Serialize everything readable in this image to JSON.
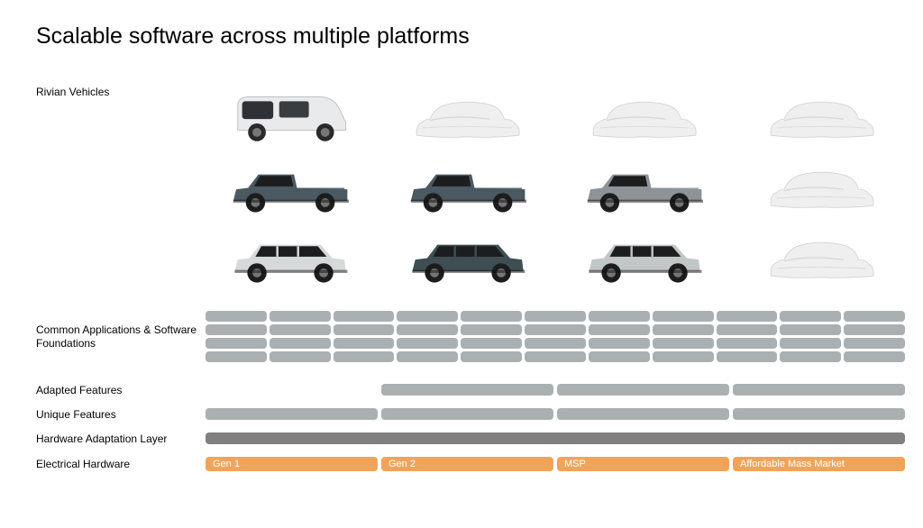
{
  "title": "Scalable software across multiple platforms",
  "labels": {
    "vehicles": "Rivian Vehicles",
    "apps": "Common Applications & Software Foundations",
    "adapted": "Adapted Features",
    "unique": "Unique Features",
    "hal": "Hardware Adaptation Layer",
    "elec": "Electrical Hardware"
  },
  "vehicle_grid": {
    "cols": 4,
    "rows": 3,
    "cells": [
      {
        "type": "van",
        "color": "#e9eaec",
        "accent": "#2a2a2a"
      },
      {
        "type": "covered",
        "color": "#efefef"
      },
      {
        "type": "covered",
        "color": "#efefef"
      },
      {
        "type": "covered",
        "color": "#efefef"
      },
      {
        "type": "truck",
        "color": "#4a5962",
        "accent": "#1d1d1d"
      },
      {
        "type": "truck",
        "color": "#4a5962",
        "accent": "#1d1d1d"
      },
      {
        "type": "truck",
        "color": "#8d9397",
        "accent": "#1d1d1d"
      },
      {
        "type": "covered",
        "color": "#efefef"
      },
      {
        "type": "suv",
        "color": "#d6d9d9",
        "accent": "#1d1d1d"
      },
      {
        "type": "suv",
        "color": "#3e4e53",
        "accent": "#1d1d1d"
      },
      {
        "type": "suv",
        "color": "#c1c6c6",
        "accent": "#1d1d1d"
      },
      {
        "type": "covered",
        "color": "#efefef"
      }
    ]
  },
  "apps": {
    "cols": 11,
    "rows": 4,
    "color": "#aab0b2",
    "radius": 4
  },
  "adapted": {
    "segments": [
      {
        "present": false
      },
      {
        "present": true,
        "color": "#aab0b2"
      },
      {
        "present": true,
        "color": "#aab0b2"
      },
      {
        "present": true,
        "color": "#aab0b2"
      }
    ]
  },
  "unique": {
    "segments": [
      {
        "present": true,
        "color": "#aab0b2"
      },
      {
        "present": true,
        "color": "#aab0b2"
      },
      {
        "present": true,
        "color": "#aab0b2"
      },
      {
        "present": true,
        "color": "#aab0b2"
      }
    ]
  },
  "hal": {
    "color": "#808080"
  },
  "elec": {
    "segments": [
      {
        "label": "Gen 1",
        "bg": "#efa45a"
      },
      {
        "label": "Gen 2",
        "bg": "#efa45a"
      },
      {
        "label": "MSP",
        "bg": "#efa45a"
      },
      {
        "label": "Affordable Mass Market",
        "bg": "#efa45a"
      }
    ],
    "text_color": "#ffffff"
  }
}
